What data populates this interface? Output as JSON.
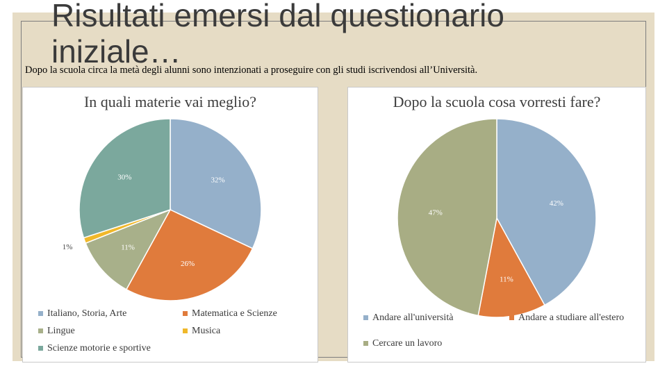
{
  "slide": {
    "title": "Risultati emersi dal questionario iniziale…",
    "subtitle": "Dopo la scuola circa la metà degli alunni sono intenzionati a proseguire con gli studi iscrivendosi all’Università."
  },
  "chart_data": [
    {
      "type": "pie",
      "title": "In quali materie vai meglio?",
      "slices": [
        {
          "label": "Italiano, Storia, Arte",
          "value": 32,
          "value_label": "32%",
          "color": "#95b0ca"
        },
        {
          "label": "Matematica e Scienze",
          "value": 26,
          "value_label": "26%",
          "color": "#e07b3c"
        },
        {
          "label": "Lingue",
          "value": 11,
          "value_label": "11%",
          "color": "#a8b08a"
        },
        {
          "label": "Musica",
          "value": 1,
          "value_label": "1%",
          "color": "#f0b82a"
        },
        {
          "label": "Scienze motorie e sportive",
          "value": 30,
          "value_label": "30%",
          "color": "#7ba89d"
        }
      ],
      "legend_position": "bottom"
    },
    {
      "type": "pie",
      "title": "Dopo la scuola cosa vorresti fare?",
      "slices": [
        {
          "label": "Andare all'università",
          "value": 42,
          "value_label": "42%",
          "color": "#95b0ca"
        },
        {
          "label": "Andare a studiare all'estero",
          "value": 11,
          "value_label": "11%",
          "color": "#e07b3c"
        },
        {
          "label": "Cercare un lavoro",
          "value": 47,
          "value_label": "47%",
          "color": "#a8ad84"
        }
      ],
      "legend_position": "bottom"
    }
  ]
}
